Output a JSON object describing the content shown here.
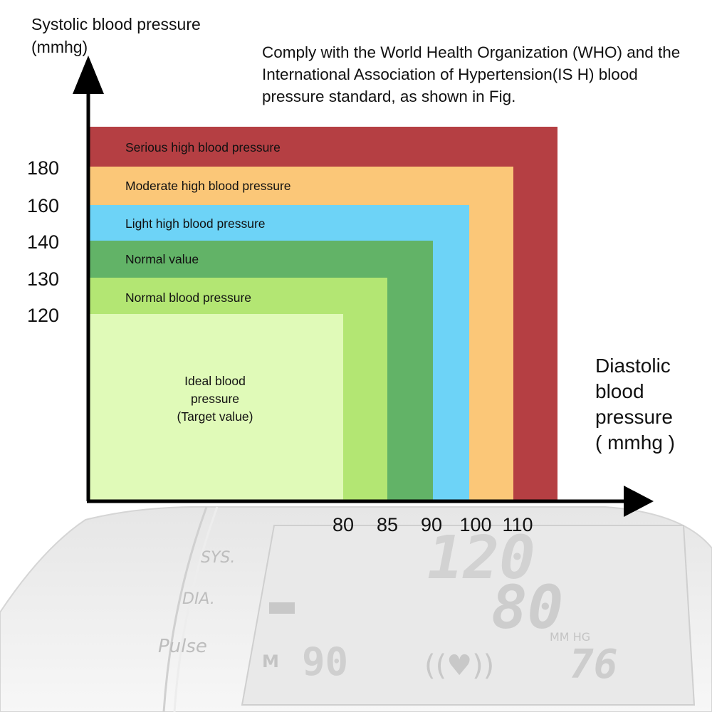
{
  "y_axis": {
    "title": "Systolic blood pressure\n(mmhg)",
    "ticks": [
      "180",
      "160",
      "140",
      "130",
      "120"
    ]
  },
  "x_axis": {
    "title": "Diastolic\nblood\npressure\n( mmhg )",
    "ticks": [
      "80",
      "85",
      "90",
      "100",
      "110"
    ]
  },
  "note": "Comply with the World Health Organization (WHO) and the International Association of Hypertension(IS H) blood pressure standard, as shown in Fig.",
  "zones": [
    {
      "label": "Serious high blood pressure",
      "color": "#b53f43"
    },
    {
      "label": "Moderate high blood pressure",
      "color": "#fbc778"
    },
    {
      "label": "Light high blood pressure",
      "color": "#6dd3f7"
    },
    {
      "label": "Normal value",
      "color": "#62b367"
    },
    {
      "label": "Normal blood pressure",
      "color": "#b3e673"
    },
    {
      "label": "Ideal blood\npressure\n(Target value)",
      "color": "#e0fab8"
    }
  ],
  "device": {
    "labels": {
      "sys": "SYS.",
      "dia": "DIA.",
      "pulse": "Pulse",
      "memory": "M",
      "unit": "MM HG"
    },
    "readings": {
      "sys": "120",
      "dia": "80",
      "pulse": "76",
      "memory": "90"
    }
  }
}
